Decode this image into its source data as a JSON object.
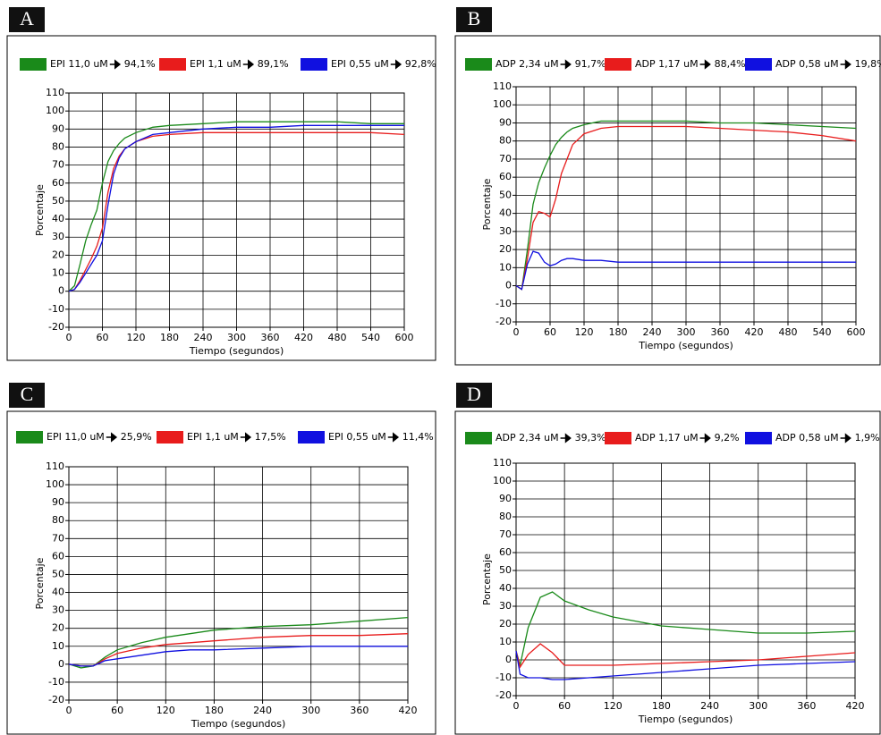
{
  "chart_data": [
    {
      "type": "line",
      "panel": "A",
      "xlabel": "Tiempo (segundos)",
      "ylabel": "Porcentaje",
      "x": [
        0,
        10,
        20,
        30,
        40,
        50,
        60,
        70,
        80,
        90,
        100,
        120,
        150,
        180,
        240,
        300,
        360,
        420,
        480,
        540,
        600
      ],
      "xlim": [
        0,
        600
      ],
      "xticks": [
        0,
        60,
        120,
        180,
        240,
        300,
        360,
        420,
        480,
        540,
        600
      ],
      "ylim": [
        -20,
        110
      ],
      "yticks": [
        -20,
        -10,
        0,
        10,
        20,
        30,
        40,
        50,
        60,
        70,
        80,
        90,
        100,
        110
      ],
      "grid": true,
      "series": [
        {
          "name": "EPI 11,0 uM",
          "result": "94,1%",
          "color": "#1a8a1a",
          "values": [
            0,
            3,
            15,
            28,
            37,
            45,
            60,
            72,
            78,
            82,
            85,
            88,
            91,
            92,
            93,
            94,
            94,
            94,
            94,
            93,
            93
          ]
        },
        {
          "name": "EPI 1,1 uM",
          "result": "89,1%",
          "color": "#e81c1c",
          "values": [
            0,
            1,
            6,
            12,
            18,
            25,
            35,
            55,
            68,
            75,
            79,
            83,
            86,
            87,
            88,
            88,
            88,
            88,
            88,
            88,
            87
          ]
        },
        {
          "name": "EPI 0,55 uM",
          "result": "92,8%",
          "color": "#1010e0",
          "values": [
            0,
            1,
            5,
            10,
            15,
            20,
            28,
            48,
            65,
            74,
            79,
            83,
            87,
            88,
            90,
            91,
            91,
            92,
            92,
            92,
            92
          ]
        }
      ]
    },
    {
      "type": "line",
      "panel": "B",
      "xlabel": "Tiempo (segundos)",
      "ylabel": "Porcentaje",
      "x": [
        0,
        10,
        20,
        30,
        40,
        50,
        60,
        70,
        80,
        90,
        100,
        120,
        150,
        180,
        240,
        300,
        360,
        420,
        480,
        540,
        600
      ],
      "xlim": [
        0,
        600
      ],
      "xticks": [
        0,
        60,
        120,
        180,
        240,
        300,
        360,
        420,
        480,
        540,
        600
      ],
      "ylim": [
        -20,
        110
      ],
      "yticks": [
        -20,
        -10,
        0,
        10,
        20,
        30,
        40,
        50,
        60,
        70,
        80,
        90,
        100,
        110
      ],
      "grid": true,
      "series": [
        {
          "name": "ADP 2,34 uM",
          "result": "91,7%",
          "color": "#1a8a1a",
          "values": [
            0,
            -2,
            20,
            45,
            57,
            65,
            72,
            78,
            82,
            85,
            87,
            89,
            91,
            91,
            91,
            91,
            90,
            90,
            89,
            88,
            87
          ]
        },
        {
          "name": "ADP 1,17 uM",
          "result": "88,4%",
          "color": "#e81c1c",
          "values": [
            0,
            -2,
            15,
            35,
            41,
            40,
            38,
            48,
            62,
            70,
            78,
            84,
            87,
            88,
            88,
            88,
            87,
            86,
            85,
            83,
            80
          ]
        },
        {
          "name": "ADP 0,58 uM",
          "result": "19,8%",
          "color": "#1010e0",
          "values": [
            0,
            -2,
            12,
            19,
            18,
            13,
            11,
            12,
            14,
            15,
            15,
            14,
            14,
            13,
            13,
            13,
            13,
            13,
            13,
            13,
            13
          ]
        }
      ]
    },
    {
      "type": "line",
      "panel": "C",
      "xlabel": "Tiempo (segundos)",
      "ylabel": "Porcentaje",
      "x": [
        0,
        15,
        30,
        45,
        60,
        90,
        120,
        150,
        180,
        240,
        300,
        360,
        420
      ],
      "xlim": [
        0,
        420
      ],
      "xticks": [
        0,
        60,
        120,
        180,
        240,
        300,
        360,
        420
      ],
      "ylim": [
        -20,
        110
      ],
      "yticks": [
        -20,
        -10,
        0,
        10,
        20,
        30,
        40,
        50,
        60,
        70,
        80,
        90,
        100,
        110
      ],
      "grid": true,
      "series": [
        {
          "name": "EPI 11,0 uM",
          "result": "25,9%",
          "color": "#1a8a1a",
          "values": [
            0,
            -2,
            -1,
            4,
            8,
            12,
            15,
            17,
            19,
            21,
            22,
            24,
            26
          ]
        },
        {
          "name": "EPI 1,1 uM",
          "result": "17,5%",
          "color": "#e81c1c",
          "values": [
            0,
            -1,
            -1,
            3,
            6,
            9,
            11,
            12,
            13,
            15,
            16,
            16,
            17
          ]
        },
        {
          "name": "EPI 0,55 uM",
          "result": "11,4%",
          "color": "#1010e0",
          "values": [
            0,
            -1,
            -1,
            2,
            3,
            5,
            7,
            8,
            8,
            9,
            10,
            10,
            10
          ]
        }
      ]
    },
    {
      "type": "line",
      "panel": "D",
      "xlabel": "Tiempo (segundos)",
      "ylabel": "Porcentaje",
      "x": [
        0,
        5,
        15,
        30,
        45,
        60,
        90,
        120,
        180,
        240,
        300,
        360,
        420
      ],
      "xlim": [
        0,
        420
      ],
      "xticks": [
        0,
        60,
        120,
        180,
        240,
        300,
        360,
        420
      ],
      "ylim": [
        -20,
        110
      ],
      "yticks": [
        -20,
        -10,
        0,
        10,
        20,
        30,
        40,
        50,
        60,
        70,
        80,
        90,
        100,
        110
      ],
      "grid": true,
      "series": [
        {
          "name": "ADP 2,34 uM",
          "result": "39,3%",
          "color": "#1a8a1a",
          "values": [
            5,
            -3,
            18,
            35,
            38,
            33,
            28,
            24,
            19,
            17,
            15,
            15,
            16
          ]
        },
        {
          "name": "ADP 1,17 uM",
          "result": "9,2%",
          "color": "#e81c1c",
          "values": [
            5,
            -4,
            3,
            9,
            4,
            -3,
            -3,
            -3,
            -2,
            -1,
            0,
            2,
            4
          ]
        },
        {
          "name": "ADP 0,58 uM",
          "result": "1,9%",
          "color": "#1010e0",
          "values": [
            5,
            -8,
            -10,
            -10,
            -11,
            -11,
            -10,
            -9,
            -7,
            -5,
            -3,
            -2,
            -1
          ]
        }
      ]
    }
  ]
}
